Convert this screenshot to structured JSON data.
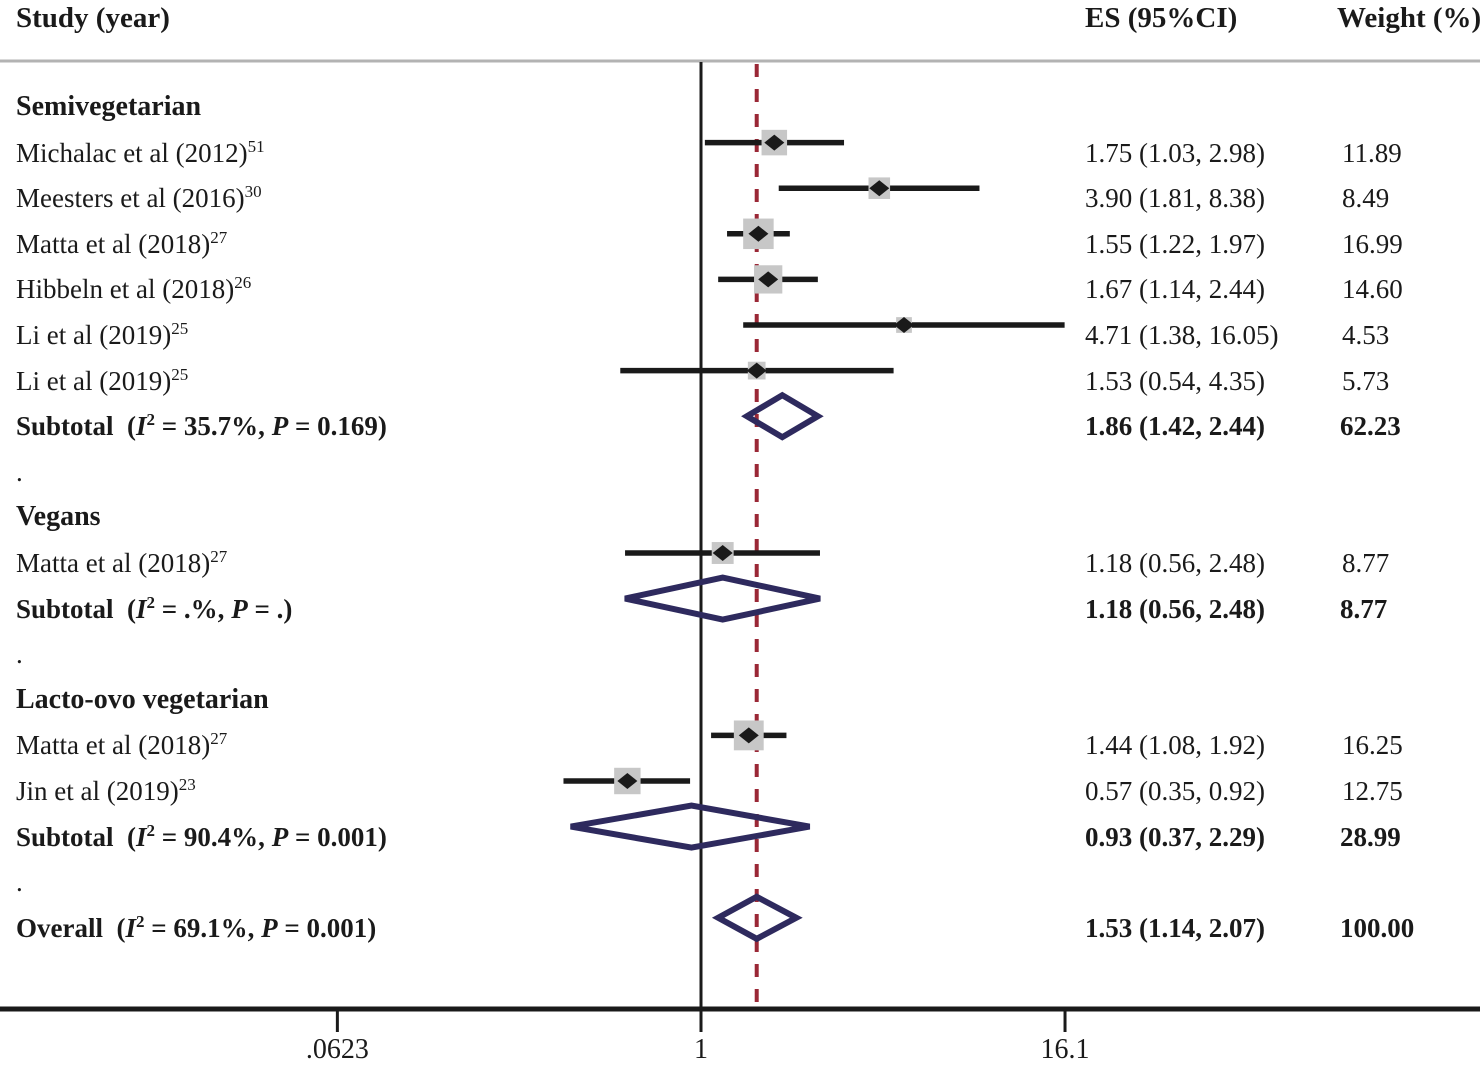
{
  "header": {
    "study_col": "Study (year)",
    "es_col": "ES (95%CI)",
    "weight_col": "Weight (%)"
  },
  "chart_data": {
    "type": "forest",
    "scale": "log",
    "x_axis": {
      "ticks": [
        0.0623,
        1,
        16.1
      ],
      "tick_labels": [
        ".0623",
        "1",
        "16.1"
      ],
      "null_line_value": 1,
      "overall_dashed_line_value": 1.53
    },
    "colors": {
      "text": "#1a1a1a",
      "ci_line": "#1a1a1a",
      "marker_diamond": "#1a1a1a",
      "weight_square": "#c7c7c7",
      "pooled_diamond": "#2e2a5e",
      "reference_dashed": "#9a2836",
      "separator_line": "#b3b3b3",
      "axis_line": "#1a1a1a"
    },
    "rows": [
      {
        "type": "group",
        "label": "Semivegetarian"
      },
      {
        "type": "study",
        "label": "Michalac et al (2012)",
        "sup": "51",
        "es": 1.75,
        "lo": 1.03,
        "hi": 2.98,
        "es_text": "1.75 (1.03, 2.98)",
        "weight": 11.89,
        "weight_text": "11.89"
      },
      {
        "type": "study",
        "label": "Meesters et al (2016)",
        "sup": "30",
        "es": 3.9,
        "lo": 1.81,
        "hi": 8.38,
        "es_text": "3.90 (1.81, 8.38)",
        "weight": 8.49,
        "weight_text": "8.49"
      },
      {
        "type": "study",
        "label": "Matta et al (2018)",
        "sup": "27",
        "es": 1.55,
        "lo": 1.22,
        "hi": 1.97,
        "es_text": "1.55 (1.22, 1.97)",
        "weight": 16.99,
        "weight_text": "16.99"
      },
      {
        "type": "study",
        "label": "Hibbeln et al (2018)",
        "sup": "26",
        "es": 1.67,
        "lo": 1.14,
        "hi": 2.44,
        "es_text": "1.67 (1.14, 2.44)",
        "weight": 14.6,
        "weight_text": "14.60"
      },
      {
        "type": "study",
        "label": "Li et al (2019)",
        "sup": "25",
        "es": 4.71,
        "lo": 1.38,
        "hi": 16.05,
        "es_text": "4.71 (1.38, 16.05)",
        "weight": 4.53,
        "weight_text": "4.53"
      },
      {
        "type": "study",
        "label": "Li et al (2019)",
        "sup": "25",
        "es": 1.53,
        "lo": 0.54,
        "hi": 4.35,
        "es_text": "1.53 (0.54, 4.35)",
        "weight": 5.73,
        "weight_text": "5.73"
      },
      {
        "type": "subtotal",
        "prefix": "Subtotal",
        "i2": "35.7%",
        "p": "0.169",
        "es": 1.86,
        "lo": 1.42,
        "hi": 2.44,
        "es_text": "1.86 (1.42, 2.44)",
        "weight_text": "62.23"
      },
      {
        "type": "dot",
        "label": "."
      },
      {
        "type": "group",
        "label": "Vegans"
      },
      {
        "type": "study",
        "label": "Matta et al (2018)",
        "sup": "27",
        "es": 1.18,
        "lo": 0.56,
        "hi": 2.48,
        "es_text": "1.18 (0.56, 2.48)",
        "weight": 8.77,
        "weight_text": "8.77"
      },
      {
        "type": "subtotal",
        "prefix": "Subtotal",
        "i2": ".%",
        "p": ".",
        "es": 1.18,
        "lo": 0.56,
        "hi": 2.48,
        "es_text": "1.18 (0.56, 2.48)",
        "weight_text": "8.77"
      },
      {
        "type": "dot",
        "label": "."
      },
      {
        "type": "group",
        "label": "Lacto-ovo vegetarian"
      },
      {
        "type": "study",
        "label": "Matta et al (2018)",
        "sup": "27",
        "es": 1.44,
        "lo": 1.08,
        "hi": 1.92,
        "es_text": "1.44 (1.08, 1.92)",
        "weight": 16.25,
        "weight_text": "16.25"
      },
      {
        "type": "study",
        "label": "Jin et al (2019)",
        "sup": "23",
        "es": 0.57,
        "lo": 0.35,
        "hi": 0.92,
        "es_text": "0.57 (0.35, 0.92)",
        "weight": 12.75,
        "weight_text": "12.75"
      },
      {
        "type": "subtotal",
        "prefix": "Subtotal",
        "i2": "90.4%",
        "p": "0.001",
        "es": 0.93,
        "lo": 0.37,
        "hi": 2.29,
        "es_text": "0.93 (0.37, 2.29)",
        "weight_text": "28.99"
      },
      {
        "type": "dot",
        "label": "."
      },
      {
        "type": "overall",
        "prefix": "Overall",
        "i2": "69.1%",
        "p": "0.001",
        "es": 1.53,
        "lo": 1.14,
        "hi": 2.07,
        "es_text": "1.53 (1.14, 2.07)",
        "weight_text": "100.00"
      }
    ]
  }
}
